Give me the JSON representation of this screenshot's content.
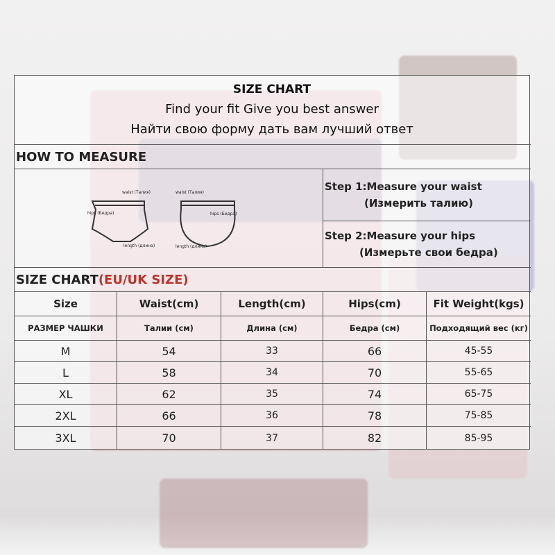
{
  "header": {
    "title": "SIZE CHART",
    "subtitle_en": "Find your fit Give you best answer",
    "subtitle_ru": "Найти свою форму дать вам лучший ответ"
  },
  "measure": {
    "heading": "HOW TO MEASURE",
    "diagram": {
      "waist": "waist (Талия)",
      "hips": "hips (Бедра)",
      "length": "length (длина)"
    },
    "step1": "Step 1:Measure your waist",
    "step1_ru": "(Измерить талию)",
    "step2": "Step 2:Measure your hips",
    "step2_ru": "(Измерьте свои бедра)"
  },
  "size_chart": {
    "heading": "SIZE CHART",
    "heading_region": "(EU/UK SIZE)",
    "region_color": "#b8352e",
    "columns": [
      "Size",
      "Waist(cm)",
      "Length(cm)",
      "Hips(cm)",
      "Fit  Weight(kgs)"
    ],
    "columns_ru": [
      "РАЗМЕР ЧАШКИ",
      "Талии (см)",
      "Длина (см)",
      "Бедра (см)",
      "Подходящий вес (кг)"
    ],
    "rows": [
      [
        "M",
        "54",
        "33",
        "66",
        "45-55"
      ],
      [
        "L",
        "58",
        "34",
        "70",
        "55-65"
      ],
      [
        "XL",
        "62",
        "35",
        "74",
        "65-75"
      ],
      [
        "2XL",
        "66",
        "36",
        "78",
        "75-85"
      ],
      [
        "3XL",
        "70",
        "37",
        "82",
        "85-95"
      ]
    ]
  }
}
